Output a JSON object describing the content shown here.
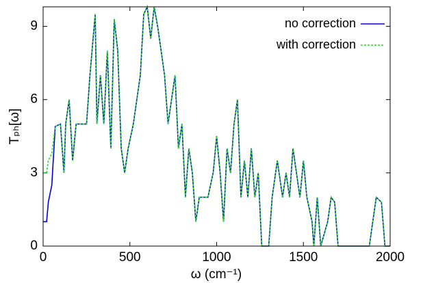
{
  "chart_data": {
    "type": "line",
    "xlabel": "ω (cm⁻¹)",
    "ylabel": "Tₚₕ[ω]",
    "x": [
      0,
      20,
      30,
      50,
      70,
      100,
      120,
      130,
      150,
      170,
      190,
      250,
      270,
      300,
      310,
      330,
      350,
      370,
      390,
      410,
      430,
      450,
      470,
      490,
      520,
      540,
      560,
      580,
      600,
      620,
      640,
      660,
      680,
      700,
      720,
      740,
      760,
      780,
      800,
      820,
      840,
      860,
      880,
      900,
      950,
      980,
      1000,
      1020,
      1040,
      1060,
      1080,
      1100,
      1120,
      1140,
      1160,
      1180,
      1200,
      1220,
      1240,
      1260,
      1300,
      1320,
      1350,
      1380,
      1400,
      1420,
      1440,
      1460,
      1480,
      1500,
      1520,
      1550,
      1560,
      1580,
      1600,
      1640,
      1660,
      1680,
      1700,
      1880,
      1900,
      1920,
      1950,
      1970,
      2000
    ],
    "series": [
      {
        "name": "no correction",
        "color": "#0000dd",
        "dash": "none",
        "values": [
          1,
          1,
          1.8,
          2.5,
          4.9,
          5,
          3,
          5,
          6,
          3.5,
          5,
          5,
          7,
          9.5,
          5,
          7,
          5,
          8,
          4,
          9.3,
          8,
          4,
          3,
          4,
          5,
          6,
          7,
          9.5,
          9.8,
          8.5,
          9.8,
          9,
          8,
          7,
          5,
          6,
          7,
          4,
          5,
          2,
          4,
          3,
          1,
          2,
          2,
          3,
          4.5,
          3,
          1,
          4,
          3,
          5,
          6,
          2,
          3.5,
          2,
          4,
          2,
          3,
          0,
          0,
          2,
          3.5,
          2,
          3,
          2,
          4,
          3,
          2,
          3.5,
          2,
          1,
          0,
          2,
          0,
          1,
          2,
          1.8,
          0,
          0,
          1,
          2,
          1.8,
          0,
          0
        ]
      },
      {
        "name": "with correction",
        "color": "#22dd22",
        "dash": "3,2",
        "values": [
          3,
          3,
          3.5,
          3.8,
          4.9,
          5,
          3,
          5,
          6,
          3.5,
          5,
          5,
          7,
          9.5,
          5,
          7,
          5,
          8,
          4,
          9.3,
          8,
          4,
          3,
          4,
          5,
          6,
          7,
          9.5,
          9.8,
          8.5,
          9.8,
          9,
          8,
          7,
          5,
          6,
          7,
          4,
          5,
          2,
          4,
          3,
          1,
          2,
          2,
          3,
          4.5,
          3,
          1,
          4,
          3,
          5,
          6,
          2,
          3.5,
          2,
          4,
          2,
          3,
          0,
          0,
          2,
          3.5,
          2,
          3,
          2,
          4,
          3,
          2,
          3.5,
          2,
          1,
          0,
          2,
          0,
          1,
          2,
          1.8,
          0,
          0,
          1,
          2,
          1.8,
          0,
          0
        ]
      }
    ],
    "xlim": [
      0,
      2000
    ],
    "xticks": [
      0,
      500,
      1000,
      1500,
      2000
    ],
    "ylim": [
      0,
      9.8
    ],
    "yticks": [
      0,
      3,
      6,
      9
    ],
    "legend": "upper right",
    "grid": false
  }
}
